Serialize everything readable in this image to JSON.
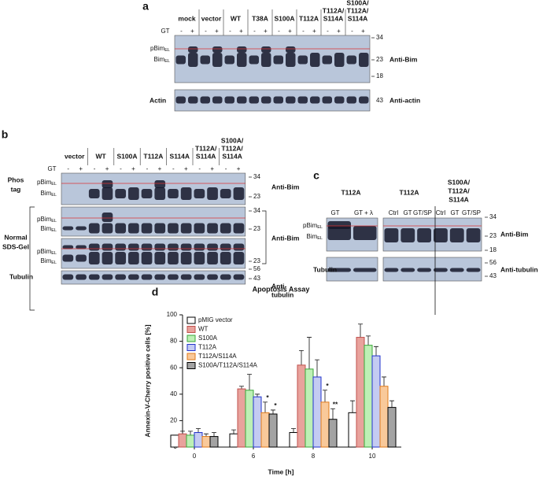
{
  "panel_a": {
    "label": "a",
    "gt": "GT",
    "signs": [
      "-",
      "+"
    ],
    "groups": [
      [
        "mock"
      ],
      [
        "vector"
      ],
      [
        "WT"
      ],
      [
        "T38A"
      ],
      [
        "S100A"
      ],
      [
        "T112A"
      ],
      [
        "T112A/",
        "S114A"
      ],
      [
        "S100A/",
        "T112A/",
        "S114A"
      ]
    ],
    "pbim": {
      "main": "pBim",
      "sub": "EL"
    },
    "bim": {
      "main": "Bim",
      "sub": "EL"
    },
    "markers": [
      34,
      23,
      18
    ],
    "antibody": "Anti-Bim",
    "loading": "Actin",
    "loading_marker": 43,
    "loading_antibody": "Anti-actin"
  },
  "panel_b": {
    "label": "b",
    "gt": "GT",
    "signs": [
      "-",
      "+"
    ],
    "groups": [
      [
        "vector"
      ],
      [
        "WT"
      ],
      [
        "S100A"
      ],
      [
        "T112A"
      ],
      [
        "S114A"
      ],
      [
        "T112A/",
        "S114A"
      ],
      [
        "S100A/",
        "T112A/",
        "S114A"
      ]
    ],
    "phos_label": [
      "Phos",
      "tag"
    ],
    "sds_label": [
      "Normal",
      "SDS-Gel"
    ],
    "pbim": {
      "main": "pBim",
      "sub": "EL"
    },
    "bim": {
      "main": "Bim",
      "sub": "EL"
    },
    "phos_markers": [
      34,
      23
    ],
    "sds_markers_1": [
      34,
      23
    ],
    "sds_markers_2": [
      23
    ],
    "tubulin_markers": [
      56,
      43
    ],
    "antibody": "Anti-Bim",
    "loading": "Tubulin",
    "loading_antibody": [
      "Anti-",
      "tubulin"
    ]
  },
  "panel_c": {
    "label": "c",
    "headers": [
      [
        "T112A"
      ],
      [
        "T112A"
      ],
      [
        "S100A/",
        "T112A/",
        "S114A"
      ]
    ],
    "lanes": [
      "GT",
      "GT + λ",
      "Ctrl",
      "GT",
      "GT/SP",
      "Ctrl",
      "GT",
      "GT/SP"
    ],
    "pbim": {
      "main": "pBim",
      "sub": "EL"
    },
    "bim": {
      "main": "Bim",
      "sub": "EL"
    },
    "markers": [
      34,
      23,
      18
    ],
    "antibody": "Anti-Bim",
    "loading": "Tubulin",
    "loading_markers": [
      56,
      43
    ],
    "loading_antibody": "Anti-tubulin"
  },
  "chart_data": {
    "type": "bar",
    "label": "d",
    "title": "Apoptosis Assay",
    "xlabel": "Time [h]",
    "ylabel": "Annexin-V-Cherry positive cells [%]",
    "categories": [
      "0",
      "6",
      "8",
      "10"
    ],
    "ylim": [
      0,
      100
    ],
    "yticks": [
      0,
      20,
      40,
      60,
      80,
      100
    ],
    "grid": false,
    "legend": "upper left",
    "series": [
      {
        "name": "pMIG vector",
        "color": "#ffffff",
        "edgecolor": "#000000",
        "values": [
          9,
          10,
          11,
          26
        ],
        "errors": [
          0,
          3,
          3,
          9
        ],
        "annotations": [
          null,
          null,
          null,
          null
        ]
      },
      {
        "name": "WT",
        "color": "#e8a29c",
        "edgecolor": "#c0504d",
        "values": [
          10,
          44,
          62,
          83
        ],
        "errors": [
          2,
          2,
          11,
          10
        ],
        "annotations": [
          null,
          null,
          null,
          null
        ]
      },
      {
        "name": "S100A",
        "color": "#bdf0b5",
        "edgecolor": "#3aa63a",
        "values": [
          9,
          43,
          59,
          77
        ],
        "errors": [
          3,
          12,
          24,
          7
        ],
        "annotations": [
          null,
          null,
          null,
          null
        ]
      },
      {
        "name": "T112A",
        "color": "#c4cbf2",
        "edgecolor": "#2233cc",
        "values": [
          11,
          38,
          53,
          69
        ],
        "errors": [
          3,
          2,
          13,
          7
        ],
        "annotations": [
          null,
          null,
          null,
          null
        ]
      },
      {
        "name": "T112A/S114A",
        "color": "#f9c99a",
        "edgecolor": "#e07a1a",
        "values": [
          8,
          26,
          34,
          46
        ],
        "errors": [
          2,
          8,
          9,
          7
        ],
        "annotations": [
          null,
          "*",
          "*",
          null
        ]
      },
      {
        "name": "S100A/T112A/S114A",
        "color": "#a3a3a3",
        "edgecolor": "#000000",
        "values": [
          8,
          25,
          21,
          30
        ],
        "errors": [
          3,
          3,
          8,
          5
        ],
        "annotations": [
          null,
          "*",
          "**",
          null
        ]
      }
    ]
  }
}
